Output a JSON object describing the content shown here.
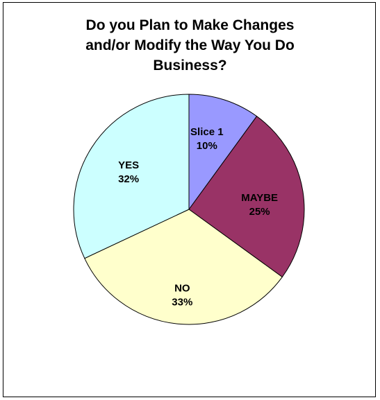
{
  "chart_data": {
    "type": "pie",
    "title_lines": [
      "Do you Plan to Make Changes",
      "and/or Modify the Way You Do",
      "Business?"
    ],
    "slices": [
      {
        "label": "Slice 1",
        "value": 10,
        "percent_label": "10%",
        "color": "#9999ff"
      },
      {
        "label": "MAYBE",
        "value": 25,
        "percent_label": "25%",
        "color": "#993366"
      },
      {
        "label": "NO",
        "value": 33,
        "percent_label": "33%",
        "color": "#ffffcc"
      },
      {
        "label": "YES",
        "value": 32,
        "percent_label": "32%",
        "color": "#ccffff"
      }
    ],
    "start_angle_deg": 0,
    "direction": "clockwise",
    "legend": "none"
  }
}
